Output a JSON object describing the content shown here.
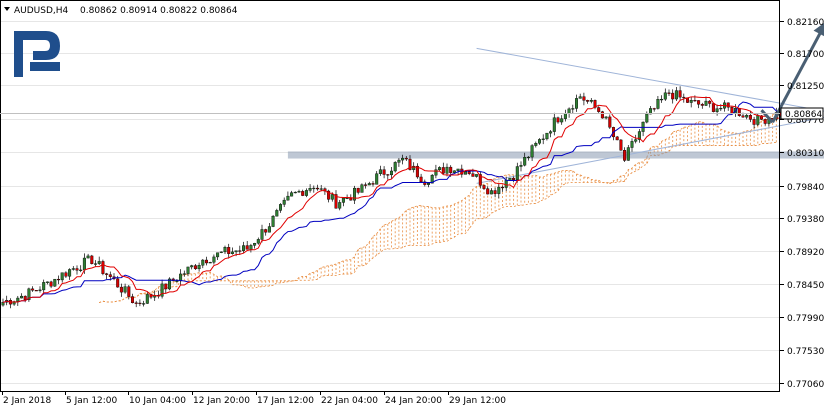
{
  "header": {
    "symbol_timeframe": "AUDUSD,H4",
    "ohlc": "0.80862 0.80914 0.80822 0.80864",
    "menu_icon": "triangle-down-icon"
  },
  "logo": {
    "icon": "rf-logo-icon",
    "color": "#1f4e8c"
  },
  "chart_data": {
    "type": "candlestick",
    "symbol": "AUDUSD",
    "timeframe": "H4",
    "ylim": [
      0.7695,
      0.8245
    ],
    "y_ticks": [
      "0.82160",
      "0.81700",
      "0.81250",
      "0.80770",
      "0.80310",
      "0.79840",
      "0.79380",
      "0.78920",
      "0.78450",
      "0.77990",
      "0.77530",
      "0.77060"
    ],
    "y_tick_values": [
      0.8216,
      0.817,
      0.8125,
      0.8077,
      0.8031,
      0.7984,
      0.7938,
      0.7892,
      0.7845,
      0.7799,
      0.7753,
      0.7706
    ],
    "x_tick_labels": [
      "2 Jan 2018",
      "5 Jan 12:00",
      "10 Jan 04:00",
      "12 Jan 20:00",
      "17 Jan 12:00",
      "22 Jan 04:00",
      "24 Jan 20:00",
      "29 Jan 12:00"
    ],
    "current_price": "0.80864",
    "colors": {
      "bull": "#2e7d32",
      "bear": "#d50000",
      "tenkan": "#e00000",
      "kijun": "#0000c0",
      "cloud": "#e8893a",
      "grid": "#e6e6e6",
      "trendline": "#9fb4d8",
      "support_zone": "#8899b0",
      "forecast_arrow": "#4a5f73"
    },
    "anchors": [
      [
        0,
        0.782
      ],
      [
        6,
        0.783
      ],
      [
        12,
        0.7846
      ],
      [
        18,
        0.7865
      ],
      [
        24,
        0.788
      ],
      [
        30,
        0.785
      ],
      [
        36,
        0.7818
      ],
      [
        42,
        0.7835
      ],
      [
        48,
        0.7858
      ],
      [
        54,
        0.788
      ],
      [
        60,
        0.789
      ],
      [
        66,
        0.7895
      ],
      [
        72,
        0.793
      ],
      [
        78,
        0.797
      ],
      [
        84,
        0.7985
      ],
      [
        90,
        0.796
      ],
      [
        96,
        0.7975
      ],
      [
        102,
        0.8
      ],
      [
        108,
        0.802
      ],
      [
        114,
        0.7992
      ],
      [
        120,
        0.801
      ],
      [
        126,
        0.8005
      ],
      [
        132,
        0.7975
      ],
      [
        138,
        0.8
      ],
      [
        144,
        0.804
      ],
      [
        150,
        0.808
      ],
      [
        156,
        0.811
      ],
      [
        162,
        0.8085
      ],
      [
        168,
        0.802
      ],
      [
        174,
        0.808
      ],
      [
        180,
        0.8115
      ],
      [
        186,
        0.81
      ],
      [
        192,
        0.8095
      ],
      [
        198,
        0.809
      ],
      [
        204,
        0.8075
      ],
      [
        210,
        0.8086
      ]
    ],
    "annotations": {
      "triangle_upper": [
        [
          128,
          0.8177
        ],
        [
          228,
          0.8083
        ]
      ],
      "triangle_lower": [
        [
          128,
          0.7987
        ],
        [
          228,
          0.8086
        ]
      ],
      "support_zone": {
        "x0": 77,
        "x1": 228,
        "y0": 0.8032,
        "y1": 0.8022
      },
      "forecast_path": [
        [
          205,
          0.809
        ],
        [
          208,
          0.8073
        ],
        [
          222,
          0.8213
        ]
      ]
    }
  }
}
